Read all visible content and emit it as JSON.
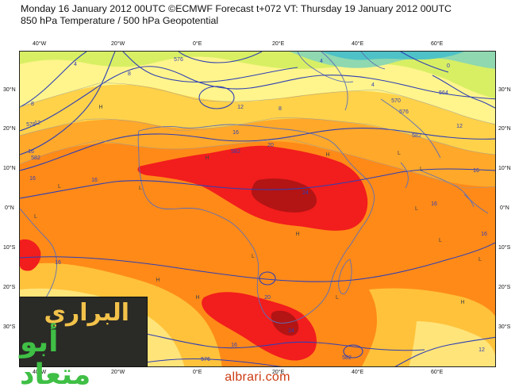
{
  "header": {
    "line1": "Monday 16 January 2012 00UTC ©ECMWF Forecast t+072 VT: Thursday 19 January 2012 00UTC",
    "line2": "850 hPa Temperature / 500 hPa Geopotential"
  },
  "axes": {
    "lon_top": [
      "40°W",
      "20°W",
      "0°E",
      "20°E",
      "40°E",
      "60°E"
    ],
    "lon_bottom": [
      "40°W",
      "20°W",
      "0°E",
      "20°E",
      "40°E",
      "60°E"
    ],
    "lat_left": [
      "30°N",
      "20°N",
      "10°N",
      "0°N",
      "10°S",
      "20°S",
      "30°S"
    ],
    "lat_right": [
      "30°N",
      "20°N",
      "10°N",
      "0°N",
      "10°S",
      "20°S",
      "30°S"
    ]
  },
  "map": {
    "temperature_labels": [
      "4",
      "4",
      "8",
      "8",
      "12",
      "12",
      "16",
      "16",
      "16",
      "16",
      "16",
      "16",
      "16",
      "20",
      "20",
      "24",
      "24",
      "0",
      "4",
      "8",
      "12",
      "16",
      "12",
      "16"
    ],
    "geopotential_labels": [
      "576",
      "582",
      "582",
      "570",
      "576",
      "564",
      "576",
      "582",
      "576",
      "582"
    ],
    "pressure_markers": [
      "H",
      "H",
      "H",
      "H",
      "L",
      "L",
      "L",
      "L",
      "L",
      "L",
      "H",
      "H",
      "L",
      "L",
      "L",
      "H",
      "L"
    ]
  },
  "logo": {
    "line1": "البراري",
    "line2": "أبو متعاد"
  },
  "footer": {
    "site": "albrari.com"
  },
  "colors": {
    "cold": "#8fd8b0",
    "cool": "#d8ef64",
    "mild": "#fff58c",
    "warm": "#ffd24a",
    "hot": "#ffa01f",
    "orange": "#ff7d14",
    "red": "#f21d1d",
    "darkred": "#b31414",
    "geopotential": "#2f3fb4"
  }
}
